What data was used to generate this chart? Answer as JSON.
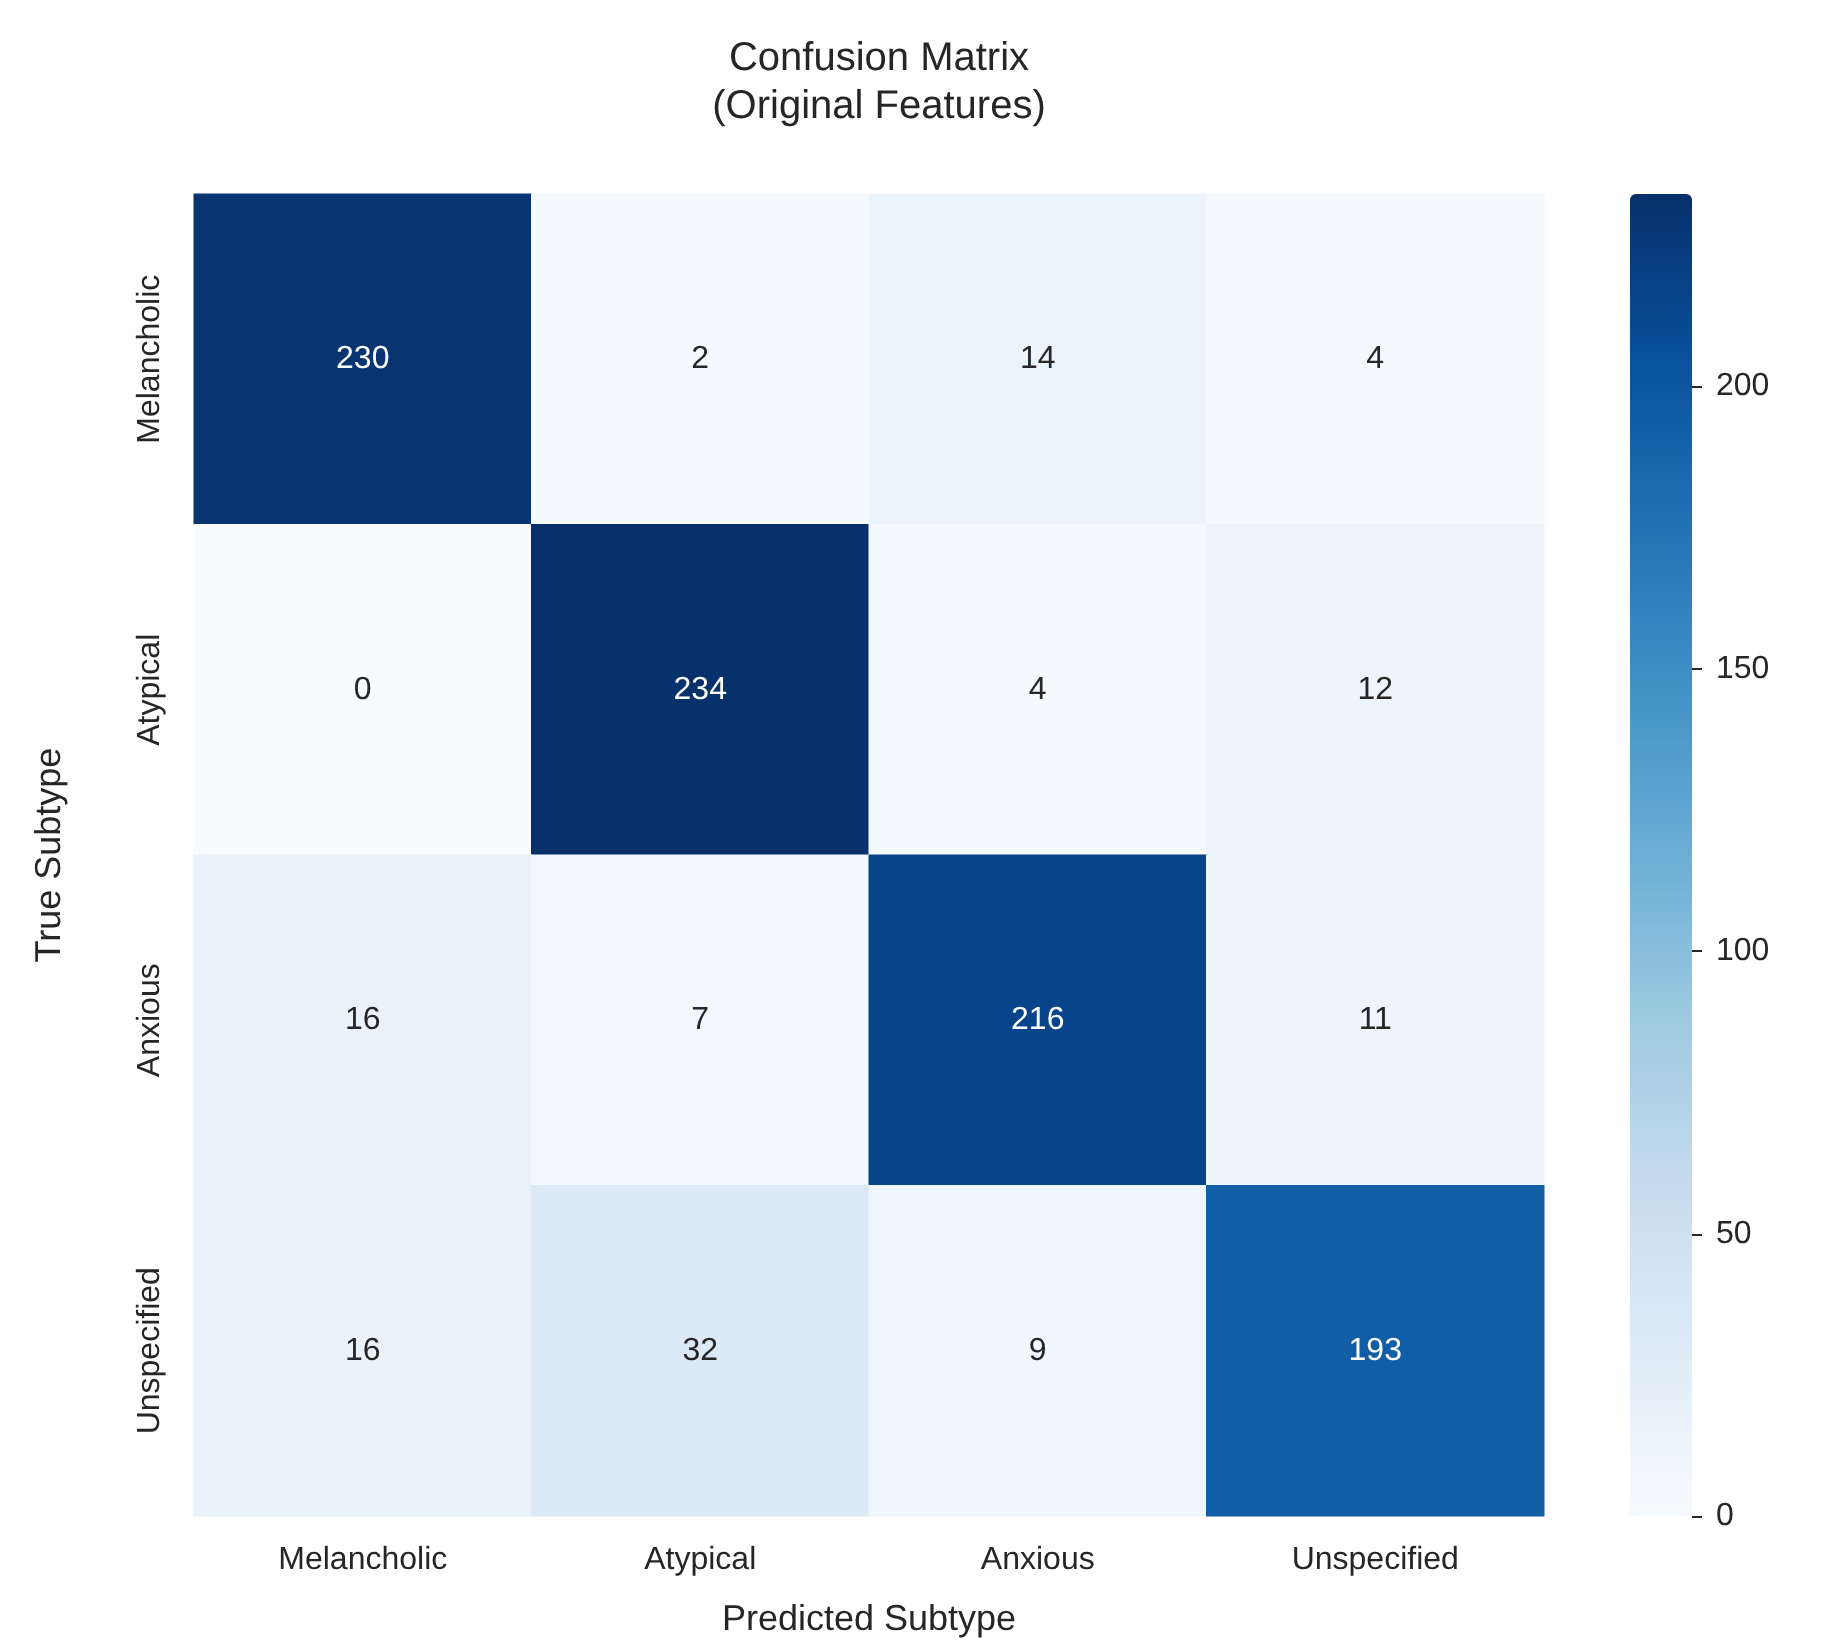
{
  "chart_data": {
    "type": "heatmap",
    "title": "Confusion Matrix\n(Original Features)",
    "xlabel": "Predicted Subtype",
    "ylabel": "True Subtype",
    "categories": [
      "Melancholic",
      "Atypical",
      "Anxious",
      "Unspecified"
    ],
    "y_categories": [
      "Melancholic",
      "Atypical",
      "Anxious",
      "Unspecified"
    ],
    "cells": [
      [
        230,
        2,
        14,
        4
      ],
      [
        0,
        234,
        4,
        12
      ],
      [
        16,
        7,
        216,
        11
      ],
      [
        16,
        32,
        9,
        193
      ]
    ],
    "data_labels": true,
    "clim": [
      0,
      234
    ],
    "cticks": [
      0,
      50,
      100,
      150,
      200
    ]
  }
}
